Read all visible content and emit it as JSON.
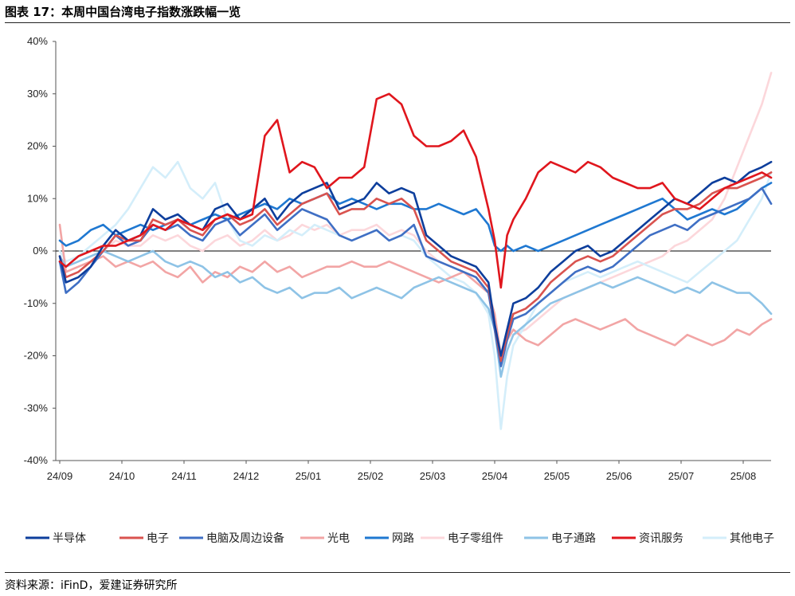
{
  "header": {
    "title": "图表 17：本周中国台湾电子指数涨跌幅一览"
  },
  "footer": {
    "source": "资料来源：iFinD，爱建证券研究所"
  },
  "chart_data": {
    "type": "line",
    "title": "本周中国台湾电子指数涨跌幅一览",
    "xlabel": "",
    "ylabel": "",
    "ylim": [
      -40,
      40
    ],
    "y_ticks": [
      "40%",
      "30%",
      "20%",
      "10%",
      "0%",
      "-10%",
      "-20%",
      "-30%",
      "-40%"
    ],
    "y_tick_values": [
      40,
      30,
      20,
      10,
      0,
      -10,
      -20,
      -30,
      -40
    ],
    "x_ticks": [
      "24/09",
      "24/10",
      "24/11",
      "24/12",
      "25/01",
      "25/02",
      "25/03",
      "25/04",
      "25/05",
      "25/06",
      "25/07",
      "25/08"
    ],
    "x_tick_index": [
      0,
      1,
      2,
      3,
      4,
      5,
      6,
      7,
      8,
      9,
      10,
      11
    ],
    "x_range": [
      0,
      11.45
    ],
    "legend_position": "bottom",
    "series": [
      {
        "name": "半导体",
        "color": "#0d3e9c",
        "x": [
          0,
          0.1,
          0.3,
          0.5,
          0.7,
          0.9,
          1.1,
          1.3,
          1.5,
          1.7,
          1.9,
          2.1,
          2.3,
          2.5,
          2.7,
          2.9,
          3.1,
          3.3,
          3.5,
          3.7,
          3.9,
          4.1,
          4.3,
          4.5,
          4.7,
          4.9,
          5.1,
          5.3,
          5.5,
          5.7,
          5.9,
          6.1,
          6.3,
          6.5,
          6.7,
          6.9,
          7.0,
          7.1,
          7.2,
          7.3,
          7.5,
          7.7,
          7.9,
          8.1,
          8.3,
          8.5,
          8.7,
          8.9,
          9.1,
          9.3,
          9.5,
          9.7,
          9.9,
          10.1,
          10.3,
          10.5,
          10.7,
          10.9,
          11.1,
          11.3,
          11.45
        ],
        "y": [
          -1,
          -6,
          -5,
          -3,
          1,
          4,
          2,
          3,
          8,
          6,
          7,
          5,
          4,
          8,
          9,
          6,
          8,
          10,
          6,
          9,
          11,
          12,
          13,
          8,
          9,
          10,
          13,
          11,
          12,
          11,
          3,
          1,
          -1,
          -2,
          -3,
          -6,
          -14,
          -20,
          -15,
          -10,
          -9,
          -7,
          -4,
          -2,
          0,
          1,
          -1,
          0,
          2,
          4,
          6,
          8,
          10,
          9,
          11,
          13,
          14,
          13,
          15,
          16,
          17
        ]
      },
      {
        "name": "电子",
        "color": "#d9534f",
        "x": [
          0,
          0.1,
          0.3,
          0.5,
          0.7,
          0.9,
          1.1,
          1.3,
          1.5,
          1.7,
          1.9,
          2.1,
          2.3,
          2.5,
          2.7,
          2.9,
          3.1,
          3.3,
          3.5,
          3.7,
          3.9,
          4.1,
          4.3,
          4.5,
          4.7,
          4.9,
          5.1,
          5.3,
          5.5,
          5.7,
          5.9,
          6.1,
          6.3,
          6.5,
          6.7,
          6.9,
          7.0,
          7.1,
          7.2,
          7.3,
          7.5,
          7.7,
          7.9,
          8.1,
          8.3,
          8.5,
          8.7,
          8.9,
          9.1,
          9.3,
          9.5,
          9.7,
          9.9,
          10.1,
          10.3,
          10.5,
          10.7,
          10.9,
          11.1,
          11.3,
          11.45
        ],
        "y": [
          -1,
          -5,
          -4,
          -2,
          0,
          3,
          2,
          2,
          6,
          5,
          6,
          4,
          3,
          6,
          7,
          5,
          6,
          8,
          5,
          7,
          9,
          10,
          11,
          7,
          8,
          8,
          10,
          9,
          10,
          8,
          2,
          0,
          -2,
          -3,
          -4,
          -7,
          -14,
          -21,
          -16,
          -12,
          -11,
          -9,
          -6,
          -4,
          -2,
          -1,
          -2,
          -1,
          1,
          3,
          5,
          7,
          8,
          8,
          9,
          11,
          12,
          12,
          13,
          14,
          15
        ]
      },
      {
        "name": "电脑及周边设备",
        "color": "#3f6fc4",
        "x": [
          0,
          0.1,
          0.3,
          0.5,
          0.7,
          0.9,
          1.1,
          1.3,
          1.5,
          1.7,
          1.9,
          2.1,
          2.3,
          2.5,
          2.7,
          2.9,
          3.1,
          3.3,
          3.5,
          3.7,
          3.9,
          4.1,
          4.3,
          4.5,
          4.7,
          4.9,
          5.1,
          5.3,
          5.5,
          5.7,
          5.9,
          6.1,
          6.3,
          6.5,
          6.7,
          6.9,
          7.0,
          7.1,
          7.2,
          7.3,
          7.5,
          7.7,
          7.9,
          8.1,
          8.3,
          8.5,
          8.7,
          8.9,
          9.1,
          9.3,
          9.5,
          9.7,
          9.9,
          10.1,
          10.3,
          10.5,
          10.7,
          10.9,
          11.1,
          11.3,
          11.45
        ],
        "y": [
          -2,
          -8,
          -6,
          -3,
          0,
          3,
          1,
          2,
          5,
          4,
          5,
          3,
          2,
          5,
          6,
          3,
          5,
          7,
          4,
          6,
          8,
          7,
          6,
          3,
          2,
          3,
          4,
          2,
          3,
          5,
          -1,
          -2,
          -3,
          -4,
          -5,
          -8,
          -15,
          -22,
          -17,
          -13,
          -12,
          -10,
          -8,
          -6,
          -4,
          -3,
          -4,
          -3,
          -1,
          1,
          3,
          4,
          5,
          4,
          6,
          7,
          8,
          9,
          10,
          12,
          9
        ]
      },
      {
        "name": "光电",
        "color": "#f2a5a5",
        "x": [
          0,
          0.1,
          0.3,
          0.5,
          0.7,
          0.9,
          1.1,
          1.3,
          1.5,
          1.7,
          1.9,
          2.1,
          2.3,
          2.5,
          2.7,
          2.9,
          3.1,
          3.3,
          3.5,
          3.7,
          3.9,
          4.1,
          4.3,
          4.5,
          4.7,
          4.9,
          5.1,
          5.3,
          5.5,
          5.7,
          5.9,
          6.1,
          6.3,
          6.5,
          6.7,
          6.9,
          7.0,
          7.1,
          7.2,
          7.3,
          7.5,
          7.7,
          7.9,
          8.1,
          8.3,
          8.5,
          8.7,
          8.9,
          9.1,
          9.3,
          9.5,
          9.7,
          9.9,
          10.1,
          10.3,
          10.5,
          10.7,
          10.9,
          11.1,
          11.3,
          11.45
        ],
        "y": [
          5,
          -4,
          -3,
          -2,
          -1,
          -3,
          -2,
          -3,
          -2,
          -4,
          -5,
          -3,
          -6,
          -4,
          -5,
          -3,
          -4,
          -2,
          -4,
          -3,
          -5,
          -4,
          -3,
          -3,
          -2,
          -3,
          -3,
          -2,
          -3,
          -4,
          -5,
          -6,
          -5,
          -4,
          -6,
          -8,
          -12,
          -20,
          -17,
          -15,
          -17,
          -18,
          -16,
          -14,
          -13,
          -14,
          -15,
          -14,
          -13,
          -15,
          -16,
          -17,
          -18,
          -16,
          -17,
          -18,
          -17,
          -15,
          -16,
          -14,
          -13
        ]
      },
      {
        "name": "网路",
        "color": "#1f78d1",
        "x": [
          0,
          0.1,
          0.3,
          0.5,
          0.7,
          0.9,
          1.1,
          1.3,
          1.5,
          1.7,
          1.9,
          2.1,
          2.3,
          2.5,
          2.7,
          2.9,
          3.1,
          3.3,
          3.5,
          3.7,
          3.9,
          4.1,
          4.3,
          4.5,
          4.7,
          4.9,
          5.1,
          5.3,
          5.5,
          5.7,
          5.9,
          6.1,
          6.3,
          6.5,
          6.7,
          6.9,
          7.0,
          7.1,
          7.2,
          7.3,
          7.5,
          7.7,
          7.9,
          8.1,
          8.3,
          8.5,
          8.7,
          8.9,
          9.1,
          9.3,
          9.5,
          9.7,
          9.9,
          10.1,
          10.3,
          10.5,
          10.7,
          10.9,
          11.1,
          11.3,
          11.45
        ],
        "y": [
          2,
          1,
          2,
          4,
          5,
          3,
          4,
          5,
          4,
          5,
          6,
          5,
          6,
          7,
          6,
          7,
          8,
          9,
          8,
          10,
          9,
          10,
          11,
          9,
          10,
          9,
          8,
          9,
          9,
          8,
          8,
          9,
          8,
          7,
          8,
          5,
          1,
          0,
          1,
          0,
          1,
          0,
          1,
          2,
          3,
          4,
          5,
          6,
          7,
          8,
          9,
          10,
          8,
          6,
          7,
          8,
          7,
          8,
          10,
          12,
          13
        ]
      },
      {
        "name": "电子零组件",
        "color": "#fcd7db",
        "x": [
          0,
          0.1,
          0.3,
          0.5,
          0.7,
          0.9,
          1.1,
          1.3,
          1.5,
          1.7,
          1.9,
          2.1,
          2.3,
          2.5,
          2.7,
          2.9,
          3.1,
          3.3,
          3.5,
          3.7,
          3.9,
          4.1,
          4.3,
          4.5,
          4.7,
          4.9,
          5.1,
          5.3,
          5.5,
          5.7,
          5.9,
          6.1,
          6.3,
          6.5,
          6.7,
          6.9,
          7.0,
          7.1,
          7.2,
          7.3,
          7.5,
          7.7,
          7.9,
          8.1,
          8.3,
          8.5,
          8.7,
          8.9,
          9.1,
          9.3,
          9.5,
          9.7,
          9.9,
          10.1,
          10.3,
          10.5,
          10.7,
          10.9,
          11.1,
          11.3,
          11.45
        ],
        "y": [
          -1,
          -4,
          -3,
          -2,
          0,
          2,
          1,
          1,
          3,
          2,
          3,
          1,
          0,
          2,
          3,
          1,
          2,
          4,
          2,
          3,
          5,
          4,
          5,
          3,
          4,
          4,
          5,
          3,
          4,
          3,
          0,
          -2,
          -3,
          -4,
          -5,
          -8,
          -14,
          -22,
          -19,
          -16,
          -15,
          -13,
          -11,
          -9,
          -8,
          -7,
          -6,
          -5,
          -4,
          -3,
          -2,
          -1,
          1,
          2,
          4,
          6,
          10,
          16,
          22,
          28,
          34
        ]
      },
      {
        "name": "电子通路",
        "color": "#8ec3e6",
        "x": [
          0,
          0.1,
          0.3,
          0.5,
          0.7,
          0.9,
          1.1,
          1.3,
          1.5,
          1.7,
          1.9,
          2.1,
          2.3,
          2.5,
          2.7,
          2.9,
          3.1,
          3.3,
          3.5,
          3.7,
          3.9,
          4.1,
          4.3,
          4.5,
          4.7,
          4.9,
          5.1,
          5.3,
          5.5,
          5.7,
          5.9,
          6.1,
          6.3,
          6.5,
          6.7,
          6.9,
          7.0,
          7.1,
          7.2,
          7.3,
          7.5,
          7.7,
          7.9,
          8.1,
          8.3,
          8.5,
          8.7,
          8.9,
          9.1,
          9.3,
          9.5,
          9.7,
          9.9,
          10.1,
          10.3,
          10.5,
          10.7,
          10.9,
          11.1,
          11.3,
          11.45
        ],
        "y": [
          -1,
          -3,
          -2,
          -1,
          0,
          -1,
          -2,
          -1,
          0,
          -2,
          -3,
          -2,
          -3,
          -5,
          -4,
          -6,
          -5,
          -7,
          -8,
          -7,
          -9,
          -8,
          -8,
          -7,
          -9,
          -8,
          -7,
          -8,
          -9,
          -7,
          -6,
          -5,
          -6,
          -7,
          -8,
          -11,
          -15,
          -24,
          -19,
          -16,
          -14,
          -12,
          -10,
          -9,
          -8,
          -7,
          -6,
          -7,
          -6,
          -5,
          -6,
          -7,
          -8,
          -7,
          -8,
          -6,
          -7,
          -8,
          -8,
          -10,
          -12
        ]
      },
      {
        "name": "资讯服务",
        "color": "#e0161d",
        "x": [
          0,
          0.1,
          0.3,
          0.5,
          0.7,
          0.9,
          1.1,
          1.3,
          1.5,
          1.7,
          1.9,
          2.1,
          2.3,
          2.5,
          2.7,
          2.9,
          3.1,
          3.3,
          3.5,
          3.7,
          3.9,
          4.1,
          4.3,
          4.5,
          4.7,
          4.9,
          5.1,
          5.3,
          5.5,
          5.7,
          5.9,
          6.1,
          6.3,
          6.5,
          6.7,
          6.9,
          7.0,
          7.1,
          7.2,
          7.3,
          7.5,
          7.7,
          7.9,
          8.1,
          8.3,
          8.5,
          8.7,
          8.9,
          9.1,
          9.3,
          9.5,
          9.7,
          9.9,
          10.1,
          10.3,
          10.5,
          10.7,
          10.9,
          11.1,
          11.3,
          11.45
        ],
        "y": [
          -2,
          -3,
          -1,
          0,
          1,
          1,
          2,
          3,
          5,
          4,
          6,
          5,
          4,
          6,
          7,
          6,
          7,
          22,
          25,
          15,
          17,
          16,
          12,
          14,
          14,
          16,
          29,
          30,
          28,
          22,
          20,
          20,
          21,
          23,
          18,
          8,
          2,
          -7,
          3,
          6,
          10,
          15,
          17,
          16,
          15,
          17,
          16,
          14,
          13,
          12,
          12,
          13,
          10,
          9,
          8,
          10,
          12,
          13,
          14,
          15,
          14
        ]
      },
      {
        "name": "其他电子",
        "color": "#d4eefa",
        "x": [
          0,
          0.1,
          0.3,
          0.5,
          0.7,
          0.9,
          1.1,
          1.3,
          1.5,
          1.7,
          1.9,
          2.1,
          2.3,
          2.5,
          2.7,
          2.9,
          3.1,
          3.3,
          3.5,
          3.7,
          3.9,
          4.1,
          4.3,
          4.5,
          4.7,
          4.9,
          5.1,
          5.3,
          5.5,
          5.7,
          5.9,
          6.1,
          6.3,
          6.5,
          6.7,
          6.9,
          7.0,
          7.1,
          7.2,
          7.3,
          7.5,
          7.7,
          7.9,
          8.1,
          8.3,
          8.5,
          8.7,
          8.9,
          9.1,
          9.3,
          9.5,
          9.7,
          9.9,
          10.1,
          10.3,
          10.5,
          10.7,
          10.9,
          11.1,
          11.3,
          11.45
        ],
        "y": [
          0,
          -2,
          -1,
          1,
          3,
          5,
          8,
          12,
          16,
          14,
          17,
          12,
          10,
          13,
          6,
          2,
          1,
          3,
          2,
          4,
          3,
          5,
          4,
          3,
          2,
          3,
          4,
          2,
          3,
          2,
          -1,
          -3,
          -5,
          -6,
          -8,
          -12,
          -20,
          -34,
          -24,
          -18,
          -14,
          -10,
          -8,
          -6,
          -5,
          -4,
          -5,
          -4,
          -3,
          -2,
          -3,
          -4,
          -5,
          -6,
          -4,
          -2,
          0,
          2,
          6,
          10,
          15
        ]
      }
    ]
  }
}
